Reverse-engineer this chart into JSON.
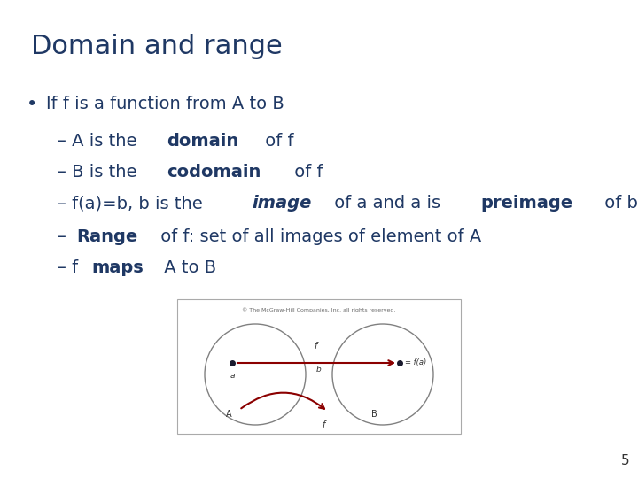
{
  "title": "Domain and range",
  "title_color": "#1F3864",
  "title_fontsize": 22,
  "bg_color": "#FFFFFF",
  "text_color": "#1F3864",
  "body_fontsize": 14,
  "bullet": "•",
  "bullet_line": "If f is a function from A to B",
  "page_number": "5",
  "diagram_copyright": "© The McGraw-Hill Companies, Inc. all rights reserved.",
  "arrow_color": "#8B0000",
  "circle_color": "#808080",
  "diagram_labels": {
    "a_label": "a",
    "b_label": "b",
    "fa_label": "= f(a)",
    "A_label": "A",
    "B_label": "B",
    "f_top": "f",
    "f_bottom": "f"
  }
}
